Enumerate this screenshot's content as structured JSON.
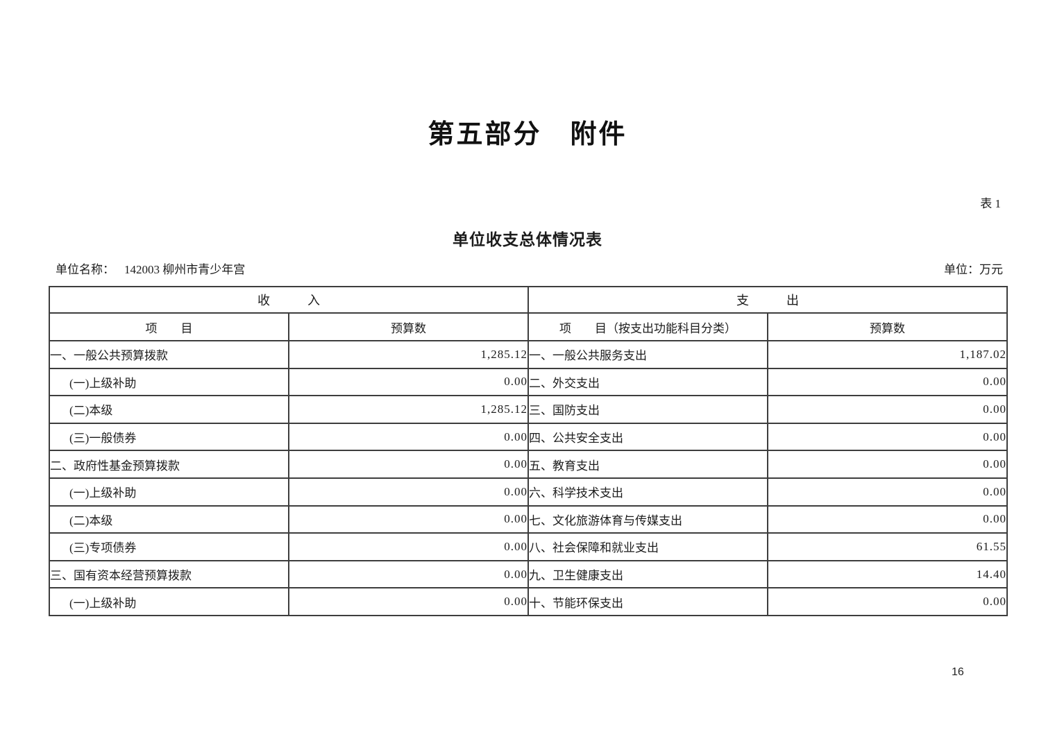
{
  "document": {
    "part_title": "第五部分　附件",
    "table_index": "表 1",
    "table_title": "单位收支总体情况表",
    "unit_name_label": "单位名称：",
    "unit_name_value": "142003 柳州市青少年宫",
    "unit_label": "单位：万元",
    "page_number": "16"
  },
  "table": {
    "group_headers": {
      "income": "收　　　入",
      "expense": "支　　　出"
    },
    "column_headers": {
      "income_item": "项　　目",
      "income_budget": "预算数",
      "expense_item": "项　　目（按支出功能科目分类）",
      "expense_budget": "预算数"
    },
    "rows": [
      {
        "income_item": "一、一般公共预算拨款",
        "income_indent": false,
        "income_value": "1,285.12",
        "expense_item": "一、一般公共服务支出",
        "expense_value": "1,187.02"
      },
      {
        "income_item": "(一)上级补助",
        "income_indent": true,
        "income_value": "0.00",
        "expense_item": "二、外交支出",
        "expense_value": "0.00"
      },
      {
        "income_item": "(二)本级",
        "income_indent": true,
        "income_value": "1,285.12",
        "expense_item": "三、国防支出",
        "expense_value": "0.00"
      },
      {
        "income_item": "(三)一般债券",
        "income_indent": true,
        "income_value": "0.00",
        "expense_item": "四、公共安全支出",
        "expense_value": "0.00"
      },
      {
        "income_item": "二、政府性基金预算拨款",
        "income_indent": false,
        "income_value": "0.00",
        "expense_item": "五、教育支出",
        "expense_value": "0.00"
      },
      {
        "income_item": "(一)上级补助",
        "income_indent": true,
        "income_value": "0.00",
        "expense_item": "六、科学技术支出",
        "expense_value": "0.00"
      },
      {
        "income_item": "(二)本级",
        "income_indent": true,
        "income_value": "0.00",
        "expense_item": "七、文化旅游体育与传媒支出",
        "expense_value": "0.00"
      },
      {
        "income_item": "(三)专项债券",
        "income_indent": true,
        "income_value": "0.00",
        "expense_item": "八、社会保障和就业支出",
        "expense_value": "61.55"
      },
      {
        "income_item": "三、国有资本经营预算拨款",
        "income_indent": false,
        "income_value": "0.00",
        "expense_item": "九、卫生健康支出",
        "expense_value": "14.40"
      },
      {
        "income_item": "(一)上级补助",
        "income_indent": true,
        "income_value": "0.00",
        "expense_item": "十、节能环保支出",
        "expense_value": "0.00"
      }
    ]
  }
}
